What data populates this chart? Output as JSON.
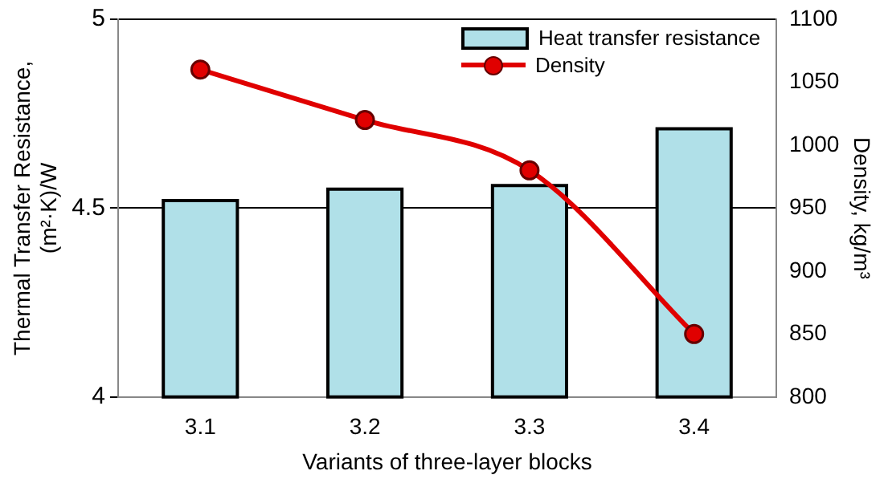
{
  "chart_data": {
    "type": "bar",
    "xlabel": "Variants of three-layer blocks",
    "ylabel": "Thermal Transfer Resistance,\n(m²·K)/W",
    "y2label": "Density, kg/m³",
    "categories": [
      "3.1",
      "3.2",
      "3.3",
      "3.4"
    ],
    "series": [
      {
        "name": "Heat transfer resistance",
        "color": "#b0e0e8",
        "values": [
          4.52,
          4.55,
          4.56,
          4.71
        ]
      },
      {
        "name": "Density",
        "type": "line",
        "axis": "y2",
        "color": "#e00000",
        "marker": "circle",
        "values": [
          1060,
          1020,
          980,
          850
        ]
      }
    ],
    "ylim": [
      4,
      5
    ],
    "yticks": [
      4,
      4.5,
      5
    ],
    "y2lim": [
      800,
      1100
    ],
    "y2ticks": [
      800,
      850,
      900,
      950,
      1000,
      1050,
      1100
    ],
    "grid": "y",
    "legend": "top right"
  }
}
